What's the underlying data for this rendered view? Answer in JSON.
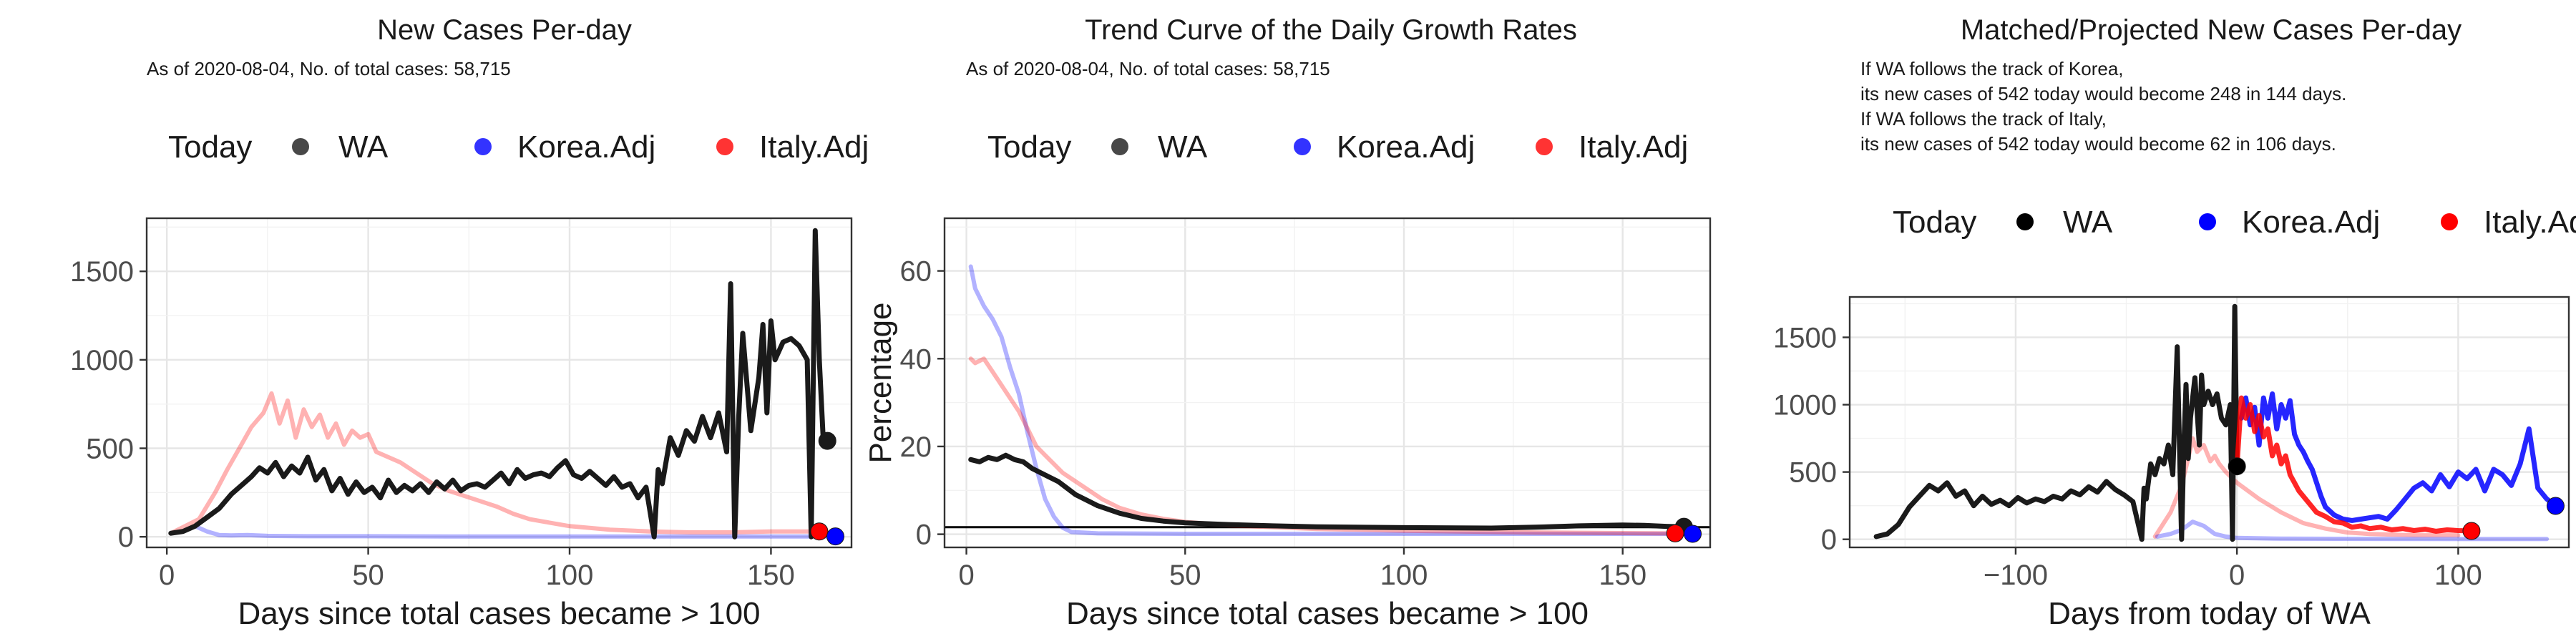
{
  "chart_data": [
    {
      "type": "line",
      "title": "New Cases Per-day",
      "subtitle_lines": [
        "As of 2020-08-04, No. of total cases: 58,715"
      ],
      "xlabel": "Days since total cases became > 100",
      "ylabel": "",
      "xlim": [
        -5,
        170
      ],
      "ylim": [
        -60,
        1800
      ],
      "xticks": [
        0,
        50,
        100,
        150
      ],
      "yticks": [
        0,
        500,
        1000,
        1500
      ],
      "legend": {
        "position": "top",
        "title": "Today",
        "labels": [
          "WA",
          "Korea.Adj",
          "Italy.Adj"
        ]
      },
      "grid": true,
      "series": [
        {
          "name": "Italy.Adj",
          "color": "#FF0000",
          "opacity": 0.3,
          "x": [
            1,
            8,
            12,
            15,
            18,
            21,
            24,
            26,
            28,
            30,
            32,
            34,
            36,
            38,
            40,
            42,
            44,
            46,
            48,
            50,
            52,
            55,
            58,
            62,
            66,
            70,
            74,
            78,
            82,
            86,
            90,
            95,
            100,
            110,
            120,
            130,
            140,
            150,
            160
          ],
          "y": [
            20,
            100,
            250,
            380,
            500,
            620,
            700,
            810,
            640,
            770,
            560,
            720,
            620,
            690,
            560,
            640,
            520,
            600,
            560,
            580,
            480,
            450,
            420,
            360,
            300,
            260,
            230,
            200,
            170,
            130,
            100,
            80,
            60,
            40,
            30,
            25,
            25,
            30,
            30
          ]
        },
        {
          "name": "Korea.Adj",
          "color": "#0000FF",
          "opacity": 0.3,
          "x": [
            1,
            4,
            7,
            10,
            13,
            16,
            20,
            25,
            35,
            50,
            70,
            100,
            130,
            160,
            165
          ],
          "y": [
            20,
            30,
            60,
            30,
            10,
            8,
            10,
            5,
            3,
            3,
            2,
            2,
            2,
            2,
            2
          ]
        },
        {
          "name": "WA",
          "color": "#1a1a1a",
          "opacity": 1,
          "x": [
            1,
            4,
            7,
            10,
            13,
            16,
            19,
            21,
            23,
            25,
            27,
            29,
            31,
            33,
            35,
            37,
            39,
            41,
            43,
            45,
            47,
            49,
            51,
            53,
            55,
            57,
            59,
            61,
            63,
            65,
            67,
            69,
            71,
            73,
            75,
            77,
            79,
            81,
            83,
            85,
            87,
            89,
            91,
            93,
            95,
            97,
            99,
            101,
            103,
            105,
            107,
            109,
            111,
            113,
            115,
            117,
            119,
            121,
            122,
            123,
            125,
            127,
            129,
            131,
            133,
            135,
            137,
            139,
            140,
            141,
            142,
            143,
            145,
            147,
            148,
            149,
            150,
            151,
            153,
            155,
            157,
            159,
            160,
            161,
            162,
            163,
            164
          ],
          "y": [
            20,
            30,
            60,
            110,
            160,
            240,
            300,
            340,
            390,
            360,
            420,
            340,
            400,
            360,
            450,
            320,
            380,
            260,
            330,
            240,
            310,
            250,
            280,
            220,
            320,
            250,
            290,
            260,
            300,
            250,
            310,
            270,
            320,
            260,
            290,
            300,
            280,
            320,
            360,
            300,
            380,
            330,
            350,
            360,
            340,
            390,
            430,
            350,
            330,
            370,
            330,
            290,
            340,
            280,
            300,
            220,
            280,
            0,
            380,
            300,
            560,
            460,
            600,
            540,
            680,
            560,
            700,
            480,
            1430,
            0,
            680,
            1150,
            600,
            900,
            1200,
            700,
            1220,
            1000,
            1100,
            1120,
            1080,
            1000,
            0,
            1730,
            1000,
            540,
            540
          ]
        }
      ],
      "today_points": [
        {
          "name": "WA",
          "x": 164,
          "y": 542,
          "color": "#1a1a1a"
        },
        {
          "name": "Italy.Adj",
          "x": 162,
          "y": 30,
          "color": "#FF0000"
        },
        {
          "name": "Korea.Adj",
          "x": 166,
          "y": 2,
          "color": "#0000FF"
        }
      ]
    },
    {
      "type": "line",
      "title": "Trend Curve of the Daily Growth Rates",
      "subtitle_lines": [
        "As of 2020-08-04, No. of total cases: 58,715"
      ],
      "xlabel": "Days since total cases became > 100",
      "ylabel": "Percentage",
      "xlim": [
        -5,
        170
      ],
      "ylim": [
        -3,
        72
      ],
      "xticks": [
        0,
        50,
        100,
        150
      ],
      "yticks": [
        0,
        20,
        40,
        60
      ],
      "hline": 1.6,
      "legend": {
        "position": "top",
        "title": "Today",
        "labels": [
          "WA",
          "Korea.Adj",
          "Italy.Adj"
        ]
      },
      "grid": true,
      "series": [
        {
          "name": "Korea.Adj",
          "color": "#0000FF",
          "opacity": 0.3,
          "x": [
            1,
            2,
            4,
            6,
            8,
            10,
            12,
            14,
            16,
            18,
            20,
            22,
            24,
            30,
            50,
            100,
            150,
            166
          ],
          "y": [
            61,
            56,
            52,
            49,
            45,
            38,
            32,
            23,
            15,
            8,
            4,
            1.5,
            0.5,
            0.2,
            0.1,
            0.1,
            0.1,
            0.1
          ]
        },
        {
          "name": "Italy.Adj",
          "color": "#FF0000",
          "opacity": 0.3,
          "x": [
            1,
            2,
            4,
            6,
            8,
            10,
            12,
            14,
            16,
            18,
            20,
            22,
            25,
            28,
            31,
            35,
            40,
            45,
            50,
            60,
            80,
            100,
            130,
            160
          ],
          "y": [
            40,
            39,
            40,
            37,
            34,
            31,
            28,
            24,
            20,
            18,
            16,
            14,
            12,
            10,
            8,
            6,
            4.5,
            3.5,
            2.8,
            2,
            1.2,
            0.8,
            0.4,
            0.2
          ]
        },
        {
          "name": "WA",
          "color": "#1a1a1a",
          "opacity": 1,
          "x": [
            1,
            3,
            5,
            7,
            9,
            11,
            13,
            15,
            17,
            19,
            21,
            23,
            25,
            30,
            35,
            40,
            45,
            50,
            60,
            70,
            80,
            100,
            120,
            130,
            140,
            150,
            155,
            160,
            164
          ],
          "y": [
            17,
            16.5,
            17.5,
            17,
            18,
            17,
            16.5,
            15,
            14,
            13,
            12,
            10.5,
            9,
            6.5,
            4.8,
            3.6,
            3,
            2.6,
            2.2,
            1.9,
            1.7,
            1.5,
            1.4,
            1.6,
            1.9,
            2.1,
            2.0,
            1.8,
            1.7
          ]
        }
      ],
      "today_points": [
        {
          "name": "WA",
          "x": 164,
          "y": 1.7,
          "color": "#1a1a1a"
        },
        {
          "name": "Italy.Adj",
          "x": 162,
          "y": 0.2,
          "color": "#FF0000"
        },
        {
          "name": "Korea.Adj",
          "x": 166,
          "y": 0.1,
          "color": "#0000FF"
        }
      ]
    },
    {
      "type": "line",
      "title": "Matched/Projected New Cases Per-day",
      "subtitle_lines": [
        "If WA follows the track of Korea,",
        "its new cases of 542 today would become 248 in 144 days.",
        "If WA follows the track of Italy,",
        "its new cases of 542 today would become 62 in 106 days."
      ],
      "xlabel": "Days from today of WA",
      "ylabel": "",
      "xlim": [
        -175,
        150
      ],
      "ylim": [
        -60,
        1800
      ],
      "xticks": [
        -100,
        0,
        100
      ],
      "yticks": [
        0,
        500,
        1000,
        1500
      ],
      "legend": {
        "position": "top",
        "title": "Today",
        "labels": [
          "WA",
          "Korea.Adj",
          "Italy.Adj"
        ]
      },
      "grid": true,
      "series": [
        {
          "name": "Italy.Adj",
          "color": "#FF0000",
          "opacity": 0.3,
          "x": [
            -37,
            -30,
            -25,
            -22,
            -20,
            -18,
            -15,
            -12,
            -10,
            -8,
            -5,
            0,
            10,
            20,
            30,
            40,
            50,
            60,
            80,
            100
          ],
          "y": [
            20,
            200,
            400,
            600,
            750,
            650,
            700,
            580,
            620,
            560,
            500,
            420,
            300,
            200,
            120,
            80,
            50,
            40,
            30,
            30
          ]
        },
        {
          "name": "Korea.Adj",
          "color": "#0000FF",
          "opacity": 0.3,
          "x": [
            -36,
            -30,
            -25,
            -20,
            -15,
            -10,
            -5,
            0,
            20,
            60,
            100,
            140
          ],
          "y": [
            20,
            40,
            70,
            130,
            100,
            40,
            20,
            10,
            5,
            3,
            2,
            2
          ]
        },
        {
          "name": "WA",
          "color": "#1a1a1a",
          "opacity": 1,
          "x": [
            -163,
            -158,
            -153,
            -148,
            -143,
            -139,
            -135,
            -131,
            -127,
            -123,
            -119,
            -115,
            -111,
            -107,
            -103,
            -99,
            -95,
            -91,
            -87,
            -83,
            -79,
            -75,
            -71,
            -67,
            -63,
            -59,
            -55,
            -51,
            -47,
            -43,
            -42,
            -41,
            -39,
            -37,
            -35,
            -33,
            -31,
            -29,
            -27,
            -25,
            -24,
            -23,
            -22,
            -21,
            -19,
            -17,
            -16,
            -15,
            -13,
            -11,
            -9,
            -7,
            -5,
            -3,
            -2,
            -1,
            0
          ],
          "y": [
            20,
            40,
            110,
            240,
            330,
            400,
            360,
            420,
            320,
            360,
            250,
            320,
            260,
            290,
            250,
            310,
            270,
            300,
            280,
            320,
            300,
            360,
            330,
            390,
            350,
            430,
            370,
            330,
            280,
            0,
            380,
            300,
            560,
            480,
            600,
            560,
            700,
            480,
            1430,
            0,
            680,
            1150,
            600,
            900,
            1200,
            700,
            1220,
            1000,
            1100,
            1000,
            1080,
            900,
            850,
            1000,
            0,
            1730,
            542
          ]
        },
        {
          "name": "Korea.Adj",
          "color": "#0000FF",
          "opacity": 0.85,
          "x": [
            2,
            4,
            6,
            8,
            10,
            12,
            14,
            16,
            18,
            20,
            22,
            24,
            26,
            28,
            30,
            32,
            34,
            36,
            38,
            40,
            44,
            48,
            52,
            56,
            60,
            64,
            68,
            72,
            76,
            80,
            84,
            88,
            92,
            96,
            100,
            104,
            108,
            112,
            116,
            120,
            124,
            128,
            132,
            136,
            140,
            144
          ],
          "y": [
            900,
            1050,
            850,
            980,
            700,
            1050,
            900,
            1080,
            820,
            1000,
            900,
            1030,
            780,
            700,
            650,
            580,
            520,
            420,
            320,
            240,
            180,
            150,
            140,
            150,
            160,
            170,
            150,
            220,
            300,
            380,
            420,
            360,
            480,
            390,
            500,
            450,
            520,
            360,
            520,
            480,
            400,
            560,
            820,
            380,
            300,
            248
          ]
        },
        {
          "name": "Italy.Adj",
          "color": "#FF0000",
          "opacity": 0.85,
          "x": [
            0,
            2,
            4,
            6,
            8,
            10,
            12,
            14,
            16,
            18,
            20,
            22,
            24,
            26,
            28,
            30,
            33,
            36,
            40,
            44,
            48,
            52,
            56,
            60,
            65,
            70,
            75,
            80,
            85,
            90,
            95,
            100,
            106
          ],
          "y": [
            542,
            1050,
            900,
            1000,
            800,
            920,
            760,
            820,
            620,
            700,
            560,
            620,
            480,
            420,
            360,
            320,
            260,
            200,
            170,
            130,
            120,
            90,
            100,
            80,
            90,
            70,
            80,
            65,
            75,
            60,
            70,
            65,
            62
          ]
        }
      ],
      "today_points": [
        {
          "name": "WA",
          "x": 0,
          "y": 542,
          "color": "#000000"
        },
        {
          "name": "Italy.Adj",
          "x": 106,
          "y": 62,
          "color": "#FF0000"
        },
        {
          "name": "Korea.Adj",
          "x": 144,
          "y": 248,
          "color": "#0000FF"
        }
      ]
    }
  ]
}
